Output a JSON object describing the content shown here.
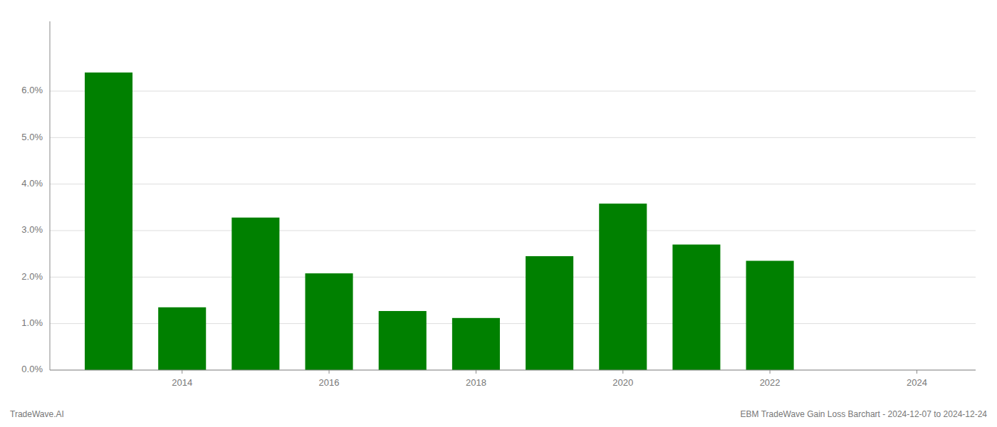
{
  "chart_data": {
    "type": "bar",
    "x": [
      2013,
      2014,
      2015,
      2016,
      2017,
      2018,
      2019,
      2020,
      2021,
      2022,
      2023
    ],
    "values": [
      0.064,
      0.0135,
      0.0328,
      0.0208,
      0.0127,
      0.0112,
      0.0245,
      0.0358,
      0.027,
      0.0235,
      0.0
    ],
    "color": "#008000",
    "xlim": [
      2012.2,
      2024.8
    ],
    "xticks": [
      2014,
      2016,
      2018,
      2020,
      2022,
      2024
    ],
    "ylim": [
      0,
      0.075
    ],
    "yticks": [
      {
        "value": 0.0,
        "label": "0.0%"
      },
      {
        "value": 0.01,
        "label": "1.0%"
      },
      {
        "value": 0.02,
        "label": "2.0%"
      },
      {
        "value": 0.03,
        "label": "3.0%"
      },
      {
        "value": 0.04,
        "label": "4.0%"
      },
      {
        "value": 0.05,
        "label": "5.0%"
      },
      {
        "value": 0.06,
        "label": "6.0%"
      }
    ],
    "grid": true,
    "annotations": [
      "TradeWave.AI",
      "EBM TradeWave Gain Loss Barchart - 2024-12-07 to 2024-12-24"
    ]
  }
}
